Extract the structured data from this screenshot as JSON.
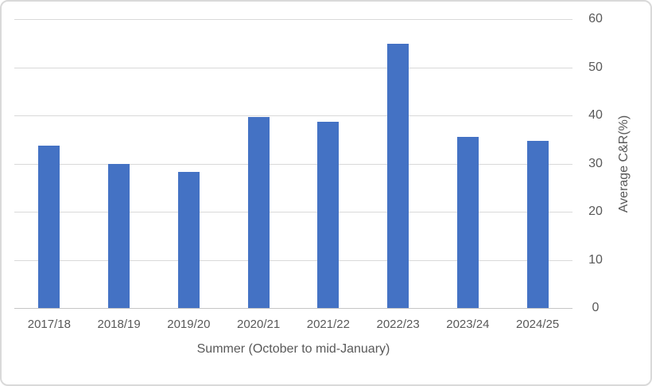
{
  "chart_data": {
    "type": "bar",
    "categories": [
      "2017/18",
      "2018/19",
      "2019/20",
      "2020/21",
      "2021/22",
      "2022/23",
      "2023/24",
      "2024/25"
    ],
    "values": [
      33.8,
      30.0,
      28.2,
      39.6,
      38.7,
      54.8,
      35.6,
      34.7
    ],
    "title": "",
    "xlabel": "Summer (October to mid-January)",
    "ylabel": "Average C&R(%)",
    "ylim": [
      0,
      60
    ],
    "yticks": [
      0,
      10,
      20,
      30,
      40,
      50,
      60
    ],
    "grid": true,
    "legend_position": "none",
    "bar_color": "#4472C4",
    "axis_text_color": "#595959",
    "gridline_color": "#D9D9D9",
    "axis_line_color": "#C6C6C6",
    "frame_border_color": "#D9D9D9",
    "background_color": "#FFFFFF"
  }
}
